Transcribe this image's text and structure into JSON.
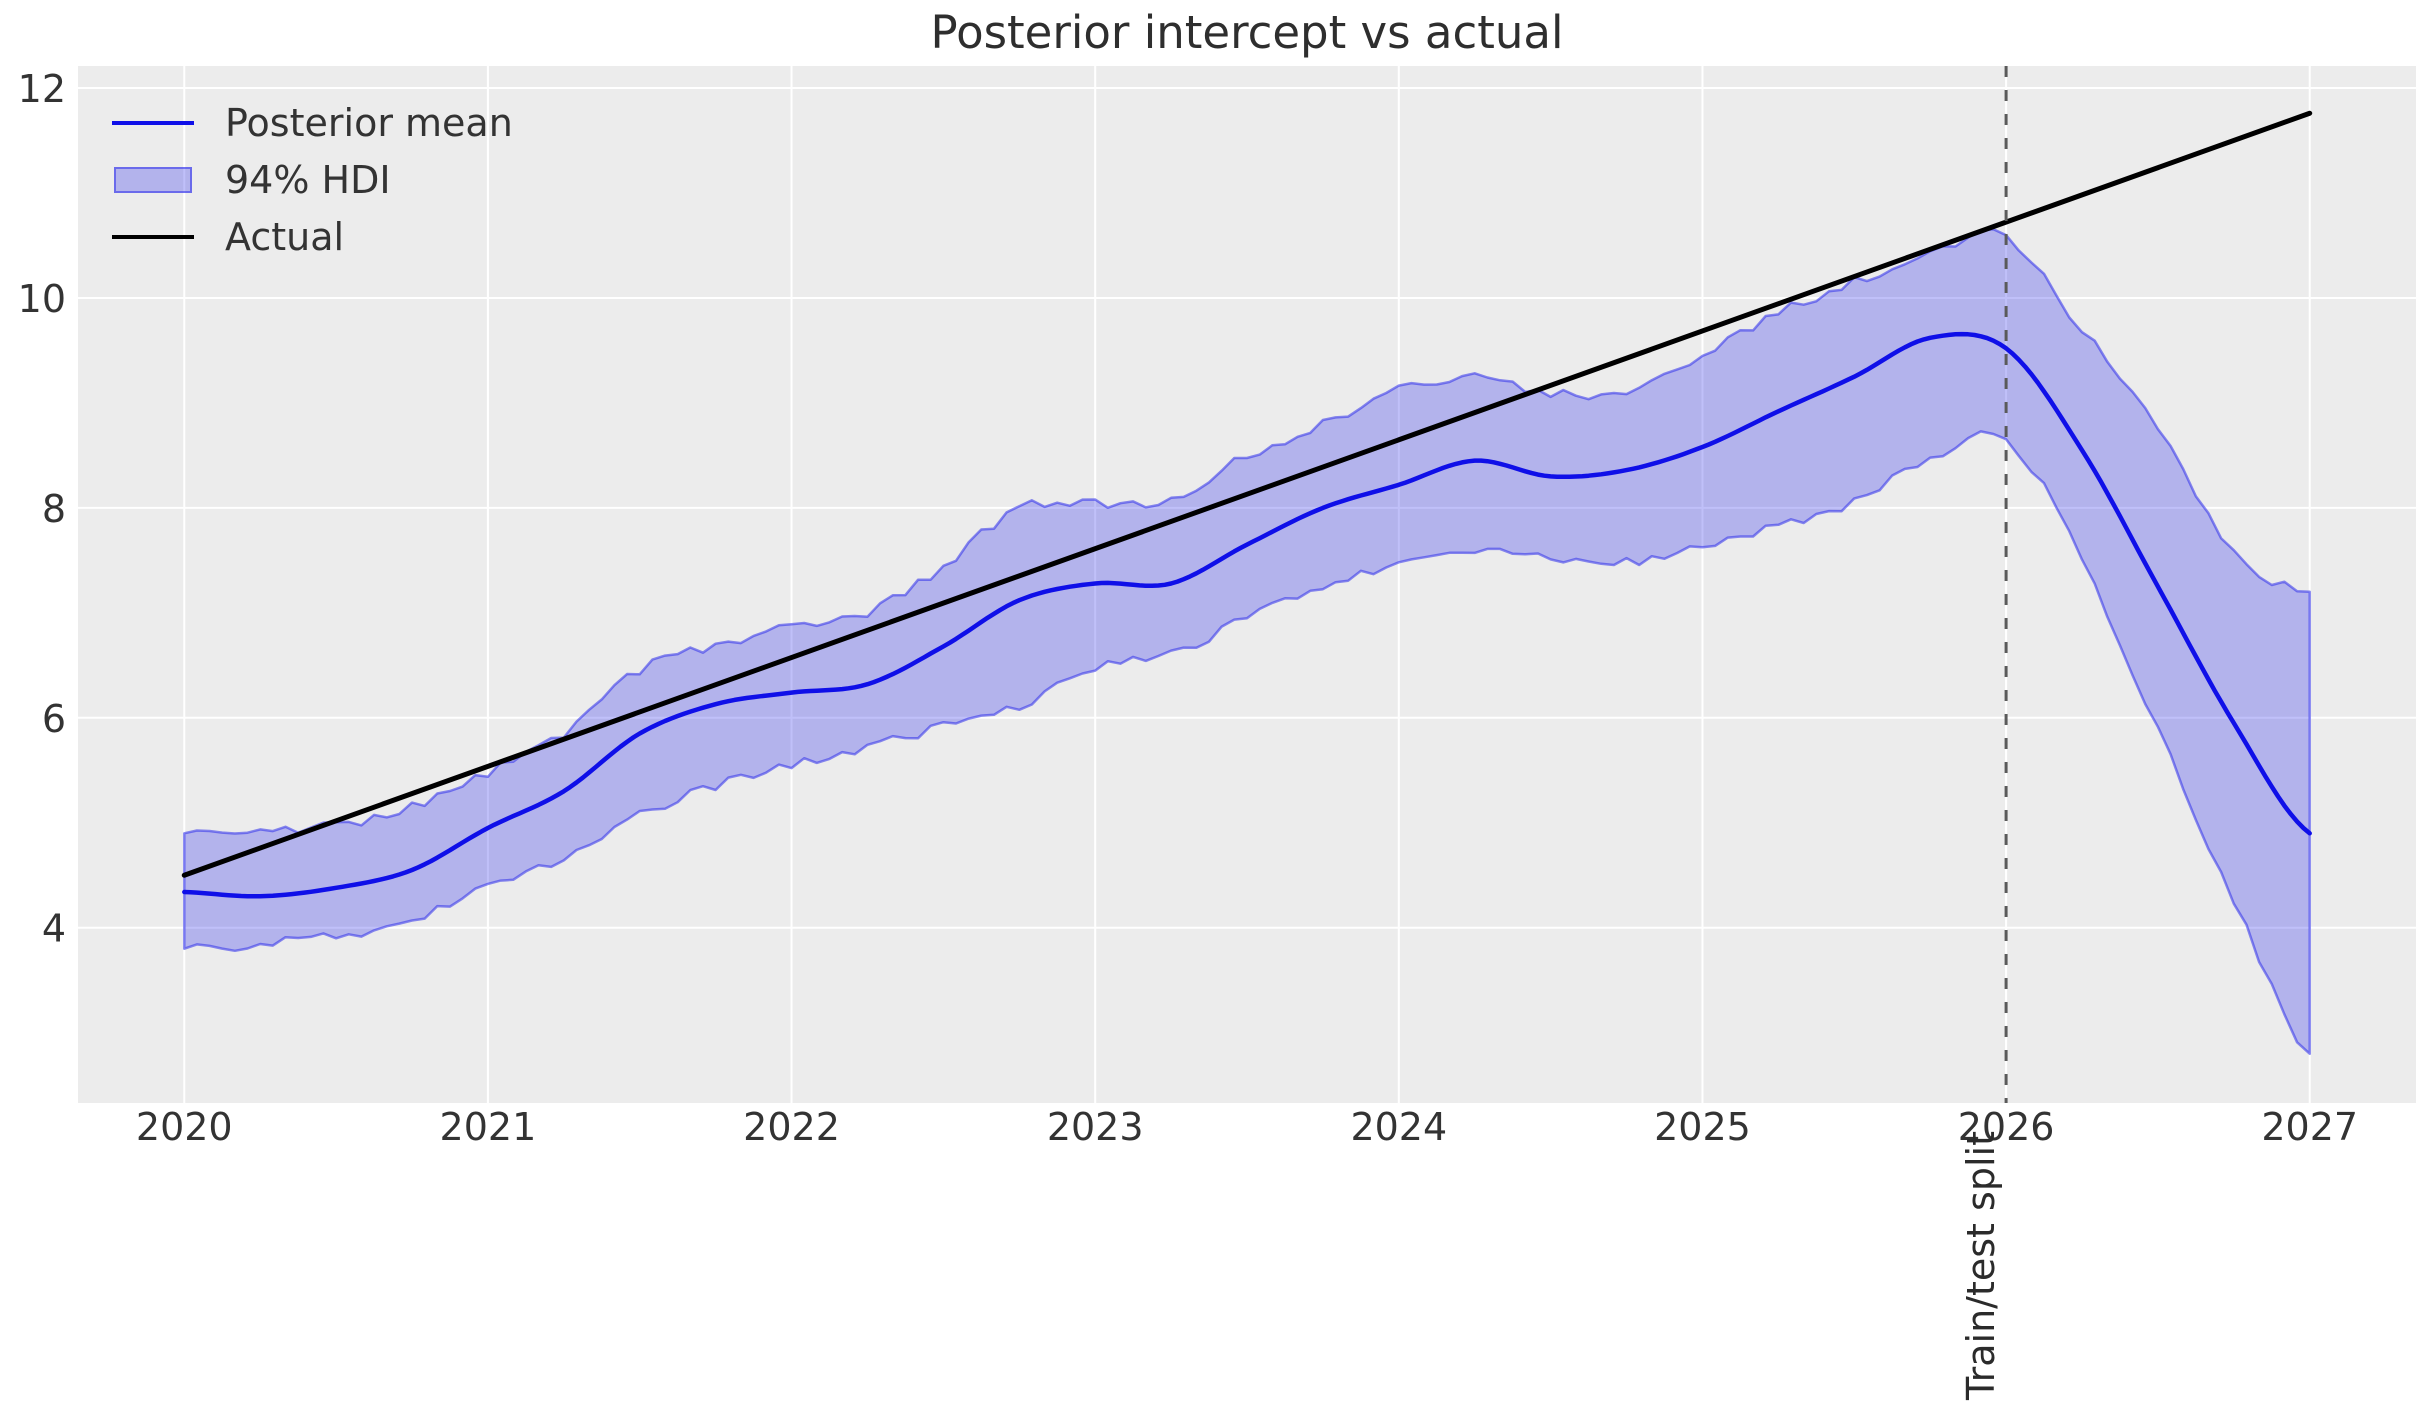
{
  "title": "Posterior intercept vs actual",
  "legend": {
    "items": [
      {
        "label": "Posterior mean",
        "swatch": "line-blue"
      },
      {
        "label": "94% HDI",
        "swatch": "patch"
      },
      {
        "label": "Actual",
        "swatch": "line-black"
      }
    ]
  },
  "colors": {
    "axes_background": "#ececec",
    "grid": "#ffffff",
    "posterior_mean": "#0f0fe8",
    "hdi_fill": "rgba(45,45,235,0.30)",
    "hdi_edge": "rgba(45,45,235,0.55)",
    "actual": "#000000",
    "split_line": "#5a5a5a",
    "tick_text": "#333333"
  },
  "chart_data": {
    "type": "line",
    "title": "Posterior intercept vs actual",
    "xlabel": "",
    "ylabel": "",
    "grid": true,
    "legend_position": "upper left",
    "xlim": [
      2019.65,
      2027.35
    ],
    "ylim": [
      2.33,
      12.21
    ],
    "xticks": [
      2020,
      2021,
      2022,
      2023,
      2024,
      2025,
      2026,
      2027
    ],
    "yticks": [
      4,
      6,
      8,
      10,
      12
    ],
    "x": [
      2020.0,
      2020.25,
      2020.5,
      2020.75,
      2021.0,
      2021.25,
      2021.5,
      2021.75,
      2022.0,
      2022.25,
      2022.5,
      2022.75,
      2023.0,
      2023.25,
      2023.5,
      2023.75,
      2024.0,
      2024.25,
      2024.5,
      2024.75,
      2025.0,
      2025.25,
      2025.5,
      2025.75,
      2026.0,
      2026.25,
      2026.5,
      2026.75,
      2027.0
    ],
    "series": [
      {
        "name": "Posterior mean",
        "role": "mean",
        "values": [
          4.34,
          4.3,
          4.38,
          4.55,
          4.95,
          5.3,
          5.85,
          6.13,
          6.24,
          6.32,
          6.68,
          7.12,
          7.28,
          7.28,
          7.65,
          8.0,
          8.22,
          8.45,
          8.3,
          8.36,
          8.58,
          8.92,
          9.25,
          9.62,
          9.52,
          8.55,
          7.25,
          5.95,
          4.9
        ]
      },
      {
        "name": "94% HDI lower",
        "role": "band_low",
        "values": [
          3.8,
          3.84,
          3.92,
          4.08,
          4.41,
          4.68,
          5.08,
          5.35,
          5.55,
          5.72,
          5.92,
          6.12,
          6.48,
          6.62,
          6.95,
          7.26,
          7.45,
          7.62,
          7.5,
          7.48,
          7.62,
          7.82,
          8.05,
          8.48,
          8.65,
          7.5,
          5.88,
          4.25,
          2.8
        ]
      },
      {
        "name": "94% HDI upper",
        "role": "band_high",
        "values": [
          4.9,
          4.92,
          4.98,
          5.15,
          5.47,
          5.84,
          6.45,
          6.68,
          6.88,
          7.0,
          7.45,
          8.0,
          8.04,
          8.1,
          8.5,
          8.8,
          9.12,
          9.26,
          9.1,
          9.13,
          9.45,
          9.85,
          10.15,
          10.42,
          10.58,
          9.7,
          8.78,
          7.55,
          7.2
        ]
      },
      {
        "name": "Actual",
        "role": "actual",
        "x": [
          2020.0,
          2027.0
        ],
        "values": [
          4.5,
          11.76
        ]
      }
    ],
    "annotations": {
      "vline_x": 2026,
      "vline_label": "Train/test split"
    }
  }
}
